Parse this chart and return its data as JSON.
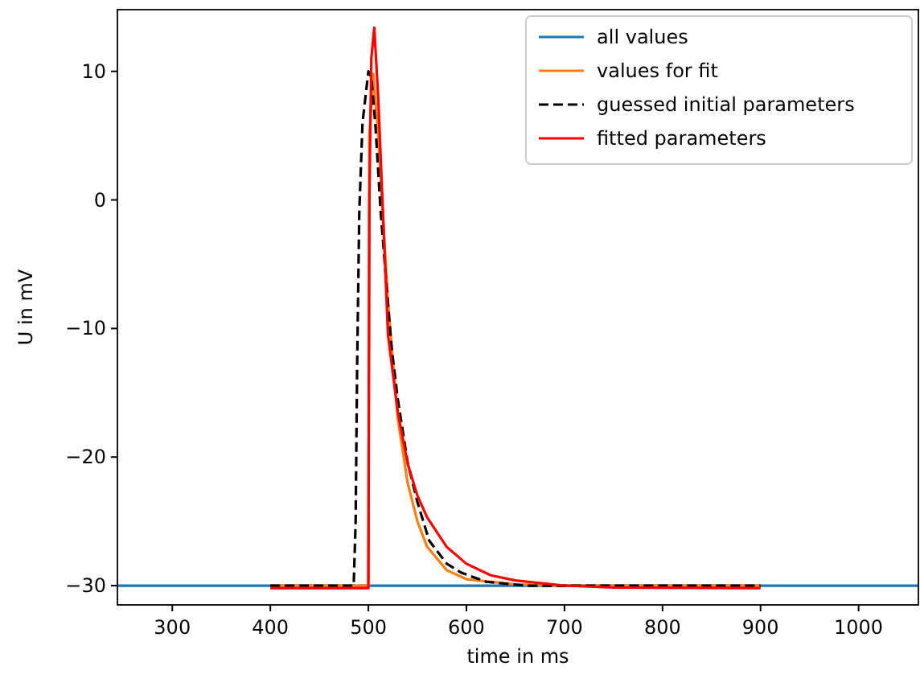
{
  "chart_data": {
    "type": "line",
    "xlabel": "time in ms",
    "ylabel": "U in mV",
    "xlim": [
      244,
      1061
    ],
    "ylim": [
      -31.5,
      14.8
    ],
    "xticks": [
      300,
      400,
      500,
      600,
      700,
      800,
      900,
      1000
    ],
    "yticks": [
      -30,
      -20,
      -10,
      0,
      10
    ],
    "grid": false,
    "legend": "top right",
    "series": [
      {
        "name": "all values",
        "color": "#1f77b4",
        "line_style": "solid",
        "x": [
          244,
          400,
          900,
          1061
        ],
        "values": [
          -30,
          -30,
          -30,
          -30
        ]
      },
      {
        "name": "values for fit",
        "color": "#ff7f0e",
        "line_style": "solid",
        "x": [
          400,
          500,
          501,
          505,
          510,
          520,
          530,
          540,
          550,
          560,
          580,
          600,
          650,
          700,
          900
        ],
        "values": [
          -30,
          -30,
          5,
          9.8,
          5,
          -8,
          -17,
          -22,
          -25,
          -27,
          -28.8,
          -29.5,
          -29.9,
          -30,
          -30
        ]
      },
      {
        "name": "guessed initial parameters",
        "color": "#000000",
        "line_style": "dashed",
        "x": [
          400,
          485,
          487,
          488.5,
          490.7,
          494,
          500,
          503,
          507,
          512.6,
          523.5,
          530,
          540,
          550,
          562,
          580,
          595,
          620,
          660,
          900
        ],
        "values": [
          -30,
          -30,
          -25,
          -13,
          -1,
          6,
          10,
          9.5,
          6,
          -1,
          -11.4,
          -15.5,
          -20.4,
          -23.5,
          -26.5,
          -28.3,
          -29,
          -29.7,
          -30,
          -30
        ]
      },
      {
        "name": "fitted parameters",
        "color": "#ff0000",
        "line_style": "solid",
        "x": [
          400,
          500,
          501,
          503,
          506,
          510,
          520,
          530,
          540,
          550,
          560,
          580,
          600,
          625,
          650,
          700,
          750,
          900
        ],
        "values": [
          -30.2,
          -30.2,
          0,
          11,
          13.4,
          8,
          -10.5,
          -16.5,
          -20.5,
          -23,
          -24.7,
          -27,
          -28.3,
          -29.2,
          -29.6,
          -30,
          -30.15,
          -30.2
        ]
      }
    ]
  }
}
